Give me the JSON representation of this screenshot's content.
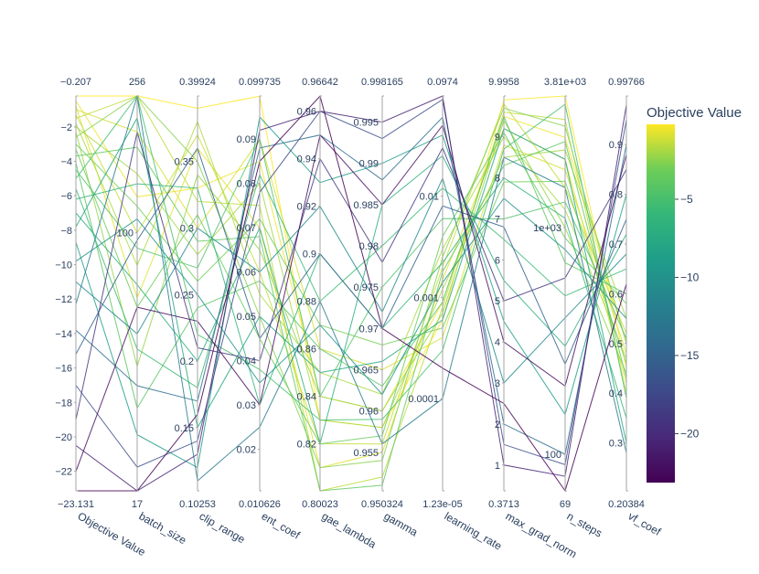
{
  "chart_data": {
    "type": "parallel_coordinates",
    "colorbar": {
      "title": "Objective Value",
      "colorscale": "Viridis",
      "range": [
        -23.131,
        -0.207
      ],
      "ticks": [
        -5,
        -10,
        -15,
        -20
      ],
      "tick_labels": [
        "−5",
        "−10",
        "−15",
        "−20"
      ]
    },
    "dimensions": [
      {
        "name": "Objective Value",
        "min": -23.131,
        "max": -0.207,
        "min_label": "−23.131",
        "max_label": "−0.207",
        "ticks": [
          -2,
          -4,
          -6,
          -8,
          -10,
          -12,
          -14,
          -16,
          -18,
          -20,
          -22
        ],
        "tick_labels": [
          "−2",
          "−4",
          "−6",
          "−8",
          "−10",
          "−12",
          "−14",
          "−16",
          "−18",
          "−20",
          "−22"
        ]
      },
      {
        "name": "batch_size",
        "min": 17,
        "max": 256,
        "scale": "log",
        "min_label": "17",
        "max_label": "256",
        "ticks": [
          100
        ],
        "tick_labels": [
          "100"
        ]
      },
      {
        "name": "clip_range",
        "min": 0.10253,
        "max": 0.39924,
        "min_label": "0.10253",
        "max_label": "0.39924",
        "ticks": [
          0.15,
          0.2,
          0.25,
          0.3,
          0.35
        ],
        "tick_labels": [
          "0.15",
          "0.2",
          "0.25",
          "0.3",
          "0.35"
        ]
      },
      {
        "name": "ent_coef",
        "min": 0.010626,
        "max": 0.099735,
        "min_label": "0.010626",
        "max_label": "0.099735",
        "ticks": [
          0.02,
          0.03,
          0.04,
          0.05,
          0.06,
          0.07,
          0.08,
          0.09
        ],
        "tick_labels": [
          "0.02",
          "0.03",
          "0.04",
          "0.05",
          "0.06",
          "0.07",
          "0.08",
          "0.09"
        ]
      },
      {
        "name": "gae_lambda",
        "min": 0.80023,
        "max": 0.96642,
        "min_label": "0.80023",
        "max_label": "0.96642",
        "ticks": [
          0.82,
          0.84,
          0.86,
          0.88,
          0.9,
          0.92,
          0.94,
          0.96
        ],
        "tick_labels": [
          "0.82",
          "0.84",
          "0.86",
          "0.88",
          "0.9",
          "0.92",
          "0.94",
          "0.96"
        ]
      },
      {
        "name": "gamma",
        "min": 0.950324,
        "max": 0.998165,
        "min_label": "0.950324",
        "max_label": "0.998165",
        "ticks": [
          0.955,
          0.96,
          0.965,
          0.97,
          0.975,
          0.98,
          0.985,
          0.99,
          0.995
        ],
        "tick_labels": [
          "0.955",
          "0.96",
          "0.965",
          "0.97",
          "0.975",
          "0.98",
          "0.985",
          "0.99",
          "0.995"
        ]
      },
      {
        "name": "learning_rate",
        "min": 1.23e-05,
        "max": 0.0974,
        "scale": "log",
        "min_label": "1.23e-05",
        "max_label": "0.0974",
        "ticks": [
          0.0001,
          0.001,
          0.01
        ],
        "tick_labels": [
          "0.0001",
          "0.001",
          "0.01"
        ]
      },
      {
        "name": "max_grad_norm",
        "min": 0.3713,
        "max": 9.9958,
        "min_label": "0.3713",
        "max_label": "9.9958",
        "ticks": [
          1,
          2,
          3,
          4,
          5,
          6,
          7,
          8,
          9
        ],
        "tick_labels": [
          "1",
          "2",
          "3",
          "4",
          "5",
          "6",
          "7",
          "8",
          "9"
        ]
      },
      {
        "name": "n_steps",
        "min": 69,
        "max": 3810,
        "scale": "log",
        "min_label": "69",
        "max_label": "3.81e+03",
        "ticks": [
          100,
          1000
        ],
        "tick_labels": [
          "100",
          "1e+03"
        ]
      },
      {
        "name": "vf_coef",
        "min": 0.20384,
        "max": 0.99766,
        "min_label": "0.20384",
        "max_label": "0.99766",
        "ticks": [
          0.3,
          0.4,
          0.5,
          0.6,
          0.7,
          0.8,
          0.9
        ],
        "tick_labels": [
          "0.3",
          "0.4",
          "0.5",
          "0.6",
          "0.7",
          "0.8",
          "0.9"
        ]
      }
    ],
    "trials": [
      [
        -0.207,
        256,
        0.39,
        0.0997,
        0.83,
        0.958,
        0.0006,
        9.9,
        3810,
        0.45
      ],
      [
        -0.5,
        128,
        0.33,
        0.085,
        0.84,
        0.96,
        0.0009,
        9.5,
        2500,
        0.5
      ],
      [
        -0.8,
        64,
        0.36,
        0.07,
        0.81,
        0.955,
        0.0015,
        9.2,
        2000,
        0.42
      ],
      [
        -1.0,
        200,
        0.3,
        0.09,
        0.86,
        0.965,
        0.0004,
        8.8,
        1800,
        0.48
      ],
      [
        -1.3,
        100,
        0.37,
        0.06,
        0.82,
        0.956,
        0.002,
        9.8,
        1500,
        0.52
      ],
      [
        -1.5,
        256,
        0.32,
        0.075,
        0.8,
        0.952,
        0.0008,
        9.6,
        3000,
        0.4
      ],
      [
        -1.8,
        80,
        0.38,
        0.055,
        0.85,
        0.962,
        0.003,
        9.0,
        1200,
        0.47
      ],
      [
        -2.0,
        150,
        0.28,
        0.08,
        0.83,
        0.958,
        0.0012,
        8.5,
        2200,
        0.55
      ],
      [
        -2.3,
        40,
        0.34,
        0.065,
        0.84,
        0.96,
        0.0007,
        9.4,
        1000,
        0.44
      ],
      [
        -2.6,
        256,
        0.35,
        0.05,
        0.81,
        0.954,
        0.0025,
        9.7,
        2800,
        0.5
      ],
      [
        -3.0,
        120,
        0.26,
        0.072,
        0.87,
        0.968,
        0.0005,
        7.9,
        1600,
        0.46
      ],
      [
        -3.3,
        60,
        0.31,
        0.045,
        0.82,
        0.957,
        0.004,
        9.1,
        900,
        0.58
      ],
      [
        -3.7,
        180,
        0.29,
        0.068,
        0.8,
        0.951,
        0.0018,
        8.3,
        2400,
        0.43
      ],
      [
        -4.1,
        30,
        0.24,
        0.058,
        0.86,
        0.963,
        0.0009,
        9.5,
        700,
        0.6
      ],
      [
        -4.5,
        90,
        0.27,
        0.09,
        0.84,
        0.975,
        0.006,
        7.0,
        1300,
        0.51
      ],
      [
        -5.0,
        256,
        0.22,
        0.038,
        0.83,
        0.959,
        0.0003,
        8.7,
        3500,
        0.39
      ],
      [
        -5.6,
        45,
        0.18,
        0.082,
        0.88,
        0.98,
        0.012,
        6.5,
        500,
        0.65
      ],
      [
        -6.2,
        140,
        0.33,
        0.03,
        0.9,
        0.97,
        0.0022,
        8.0,
        1100,
        0.35
      ],
      [
        -7.0,
        70,
        0.2,
        0.07,
        0.82,
        0.985,
        0.025,
        5.5,
        300,
        0.72
      ],
      [
        -7.8,
        220,
        0.15,
        0.05,
        0.85,
        0.966,
        0.0006,
        9.2,
        2000,
        0.3
      ],
      [
        -8.7,
        25,
        0.12,
        0.095,
        0.93,
        0.99,
        0.04,
        4.5,
        150,
        0.8
      ],
      [
        -9.8,
        110,
        0.25,
        0.035,
        0.87,
        0.962,
        0.0014,
        7.5,
        800,
        0.55
      ],
      [
        -11.0,
        50,
        0.3,
        0.06,
        0.92,
        0.972,
        0.015,
        3.0,
        400,
        0.68
      ],
      [
        -12.3,
        256,
        0.11,
        0.025,
        0.88,
        0.956,
        0.0001,
        8.5,
        1500,
        0.28
      ],
      [
        -13.8,
        35,
        0.17,
        0.088,
        0.95,
        0.988,
        0.06,
        2.0,
        100,
        0.9
      ],
      [
        -15.2,
        95,
        0.36,
        0.045,
        0.9,
        0.97,
        0.008,
        6.8,
        250,
        0.75
      ],
      [
        -17.0,
        20,
        0.14,
        0.078,
        0.96,
        0.993,
        0.09,
        1.5,
        90,
        0.95
      ],
      [
        -19.0,
        200,
        0.21,
        0.04,
        0.94,
        0.978,
        0.03,
        5.0,
        600,
        0.85
      ],
      [
        -20.5,
        17,
        0.13,
        0.092,
        0.96,
        0.995,
        0.0974,
        1.0,
        80,
        0.98
      ],
      [
        -22.0,
        60,
        0.23,
        0.03,
        0.95,
        0.985,
        0.05,
        4.0,
        200,
        0.88
      ],
      [
        -23.131,
        17,
        0.16,
        0.085,
        0.9664,
        0.97,
        0.0002,
        2.5,
        69,
        0.62
      ]
    ]
  }
}
